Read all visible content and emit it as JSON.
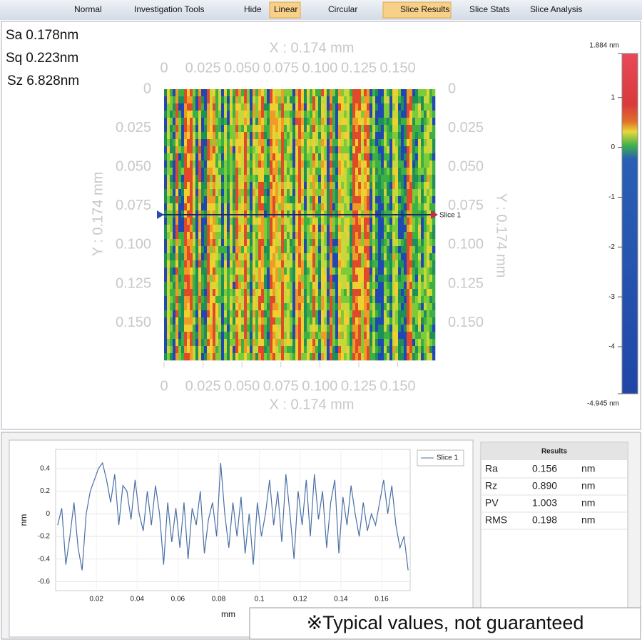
{
  "toolbar": [
    "Normal",
    "Investigation Tools",
    "Hide",
    "Linear",
    "Circular",
    "Slice Results",
    "Slice Stats",
    "Slice Analysis"
  ],
  "stats": [
    {
      "name": "Sa",
      "value": "0.178",
      "unit": "nm"
    },
    {
      "name": "Sq",
      "value": "0.223",
      "unit": "nm"
    },
    {
      "name": "Sz",
      "value": "6.828",
      "unit": "nm"
    }
  ],
  "heatmap": {
    "x_title": "X : 0.174 mm",
    "y_title": "Y : 0.174 mm",
    "lim": [
      0,
      0.174
    ],
    "ticks": [
      0,
      0.025,
      {
        "value": 0.05,
        "label": "0.050"
      },
      0.075,
      {
        "value": 0.1,
        "label": "0.100"
      },
      0.125,
      {
        "value": 0.15,
        "label": "0.150"
      }
    ],
    "slice_label": "Slice 1"
  },
  "colorbar": {
    "max": {
      "value": 1.884,
      "label": "1.884 nm"
    },
    "min": {
      "value": -4.945,
      "label": "-4.945 nm"
    },
    "ticks": [
      1,
      0,
      -1,
      -2,
      -3,
      -4
    ]
  },
  "chart_data": {
    "type": "line",
    "x_label": "mm",
    "y_label": "nm",
    "x": [
      0.001,
      0.003,
      0.005,
      0.007,
      0.009,
      0.011,
      0.013,
      0.015,
      0.017,
      0.019,
      0.021,
      0.023,
      0.025,
      0.027,
      0.029,
      0.031,
      0.033,
      0.035,
      0.037,
      0.039,
      0.041,
      0.043,
      0.045,
      0.047,
      0.049,
      0.051,
      0.053,
      0.055,
      0.057,
      0.059,
      0.061,
      0.063,
      0.065,
      0.067,
      0.069,
      0.071,
      0.073,
      0.075,
      0.077,
      0.079,
      0.081,
      0.083,
      0.085,
      0.087,
      0.089,
      0.091,
      0.093,
      0.095,
      0.097,
      0.099,
      0.101,
      0.103,
      0.105,
      0.107,
      0.109,
      0.111,
      0.113,
      0.115,
      0.117,
      0.119,
      0.121,
      0.123,
      0.125,
      0.127,
      0.129,
      0.131,
      0.133,
      0.135,
      0.137,
      0.139,
      0.141,
      0.143,
      0.145,
      0.147,
      0.149,
      0.151,
      0.153,
      0.155,
      0.157,
      0.159,
      0.161,
      0.163,
      0.165,
      0.167,
      0.169,
      0.171,
      0.173
    ],
    "series": [
      {
        "name": "Slice 1",
        "color": "#4a6fa5",
        "values": [
          -0.1,
          0.05,
          -0.45,
          -0.2,
          0.1,
          -0.3,
          -0.5,
          0.0,
          0.2,
          0.3,
          0.4,
          0.45,
          0.3,
          0.1,
          0.35,
          -0.1,
          0.25,
          0.2,
          -0.05,
          0.3,
          0.0,
          -0.15,
          0.2,
          -0.1,
          0.25,
          0.0,
          -0.45,
          0.1,
          -0.25,
          0.05,
          -0.3,
          0.1,
          -0.4,
          0.05,
          -0.1,
          0.2,
          -0.35,
          -0.05,
          0.1,
          -0.2,
          0.45,
          0.0,
          -0.3,
          0.1,
          -0.2,
          0.15,
          -0.35,
          0.0,
          -0.45,
          0.1,
          -0.2,
          0.0,
          0.3,
          -0.1,
          0.2,
          -0.25,
          0.35,
          0.0,
          -0.4,
          0.2,
          -0.1,
          0.3,
          -0.2,
          0.35,
          -0.05,
          0.2,
          -0.3,
          0.1,
          0.3,
          -0.35,
          0.15,
          -0.1,
          0.25,
          0.0,
          -0.2,
          0.1,
          -0.15,
          0.0,
          -0.1,
          0.1,
          0.3,
          0.0,
          0.25,
          -0.1,
          -0.3,
          -0.2,
          -0.5
        ]
      }
    ],
    "xlim": [
      0,
      0.174
    ],
    "ylim": [
      -0.68,
      0.57
    ],
    "xticks": [
      0.02,
      0.04,
      0.06,
      0.08,
      0.1,
      0.12,
      0.14,
      0.16
    ],
    "yticks": [
      0.4,
      0.2,
      0,
      -0.2,
      -0.4,
      -0.6
    ],
    "grid": true
  },
  "results": {
    "title": "Results",
    "rows": [
      [
        "Ra",
        "0.156",
        "nm"
      ],
      [
        "Rz",
        "0.890",
        "nm"
      ],
      [
        "PV",
        "1.003",
        "nm"
      ],
      [
        "RMS",
        "0.198",
        "nm"
      ]
    ]
  },
  "note": "※Typical values, not guaranteed"
}
